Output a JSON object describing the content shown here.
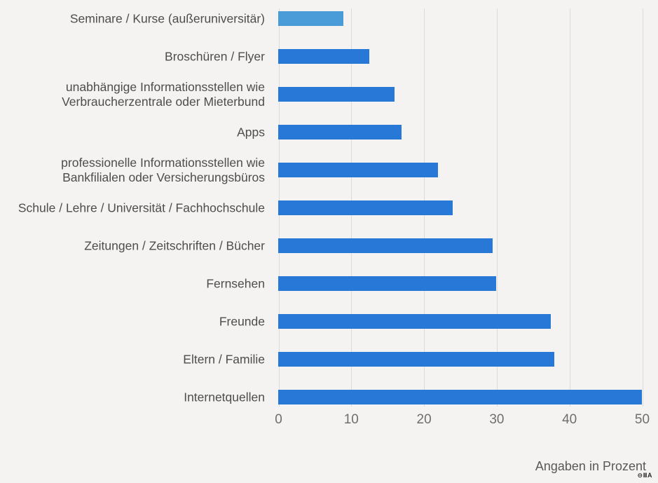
{
  "chart_data": {
    "type": "bar",
    "orientation": "horizontal",
    "title": "",
    "categories": [
      "Seminare / Kurse (außeruniversitär)",
      "Broschüren / Flyer",
      "unabhängige Informationsstellen wie\nVerbraucherzentrale oder Mieterbund",
      "Apps",
      "professionelle Informationsstellen wie\nBankfilialen oder Versicherungsbüros",
      "Schule / Lehre / Universität / Fachhochschule",
      "Zeitungen / Zeitschriften / Bücher",
      "Fernsehen",
      "Freunde",
      "Eltern / Familie",
      "Internetquellen"
    ],
    "values": [
      9,
      12.5,
      16,
      17,
      22,
      24,
      29.5,
      30,
      37.5,
      38,
      50
    ],
    "highlight_index": 0,
    "xlabel": "Angaben in Prozent",
    "ylabel": "",
    "xlim": [
      0,
      50
    ],
    "xticks": [
      0,
      10,
      20,
      30,
      40,
      50
    ],
    "grid": true,
    "legend": "none",
    "colors": {
      "bar": "#2878d7",
      "bar_highlight": "#4a9cd9",
      "background": "#f4f3f1",
      "gridline": "#dcdbd9",
      "label_text": "#4d4d4d",
      "tick_text": "#6e6e6e",
      "footer_text": "#595959"
    }
  },
  "footer": {
    "note": "Angaben in Prozent",
    "watermark": "⊖ⅡA"
  }
}
